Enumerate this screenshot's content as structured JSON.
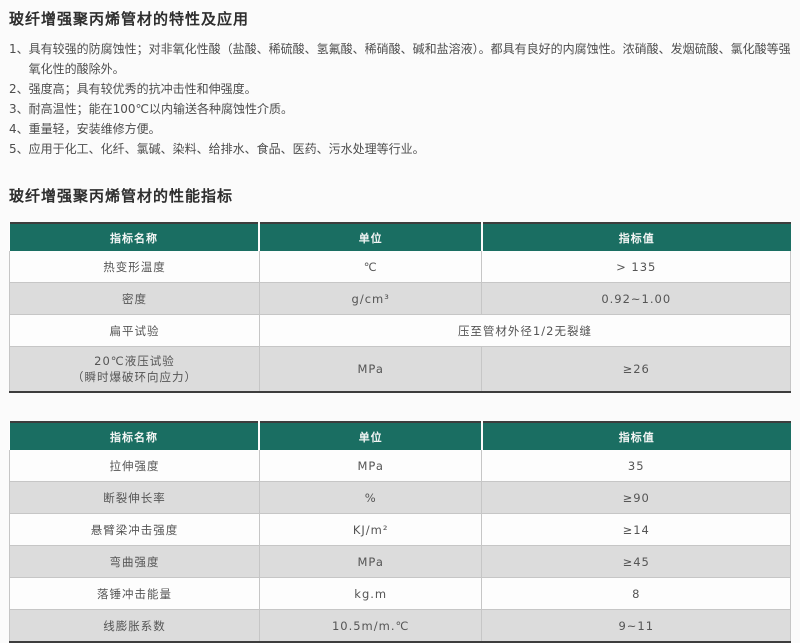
{
  "colors": {
    "header_bg": "#1a6e62",
    "alt_row_bg": "#dcdcdc",
    "table_border_dark": "#3d3d3d"
  },
  "section1": {
    "title": "玻纤增强聚丙烯管材的特性及应用"
  },
  "features": [
    {
      "num": "1、",
      "text": "具有较强的防腐蚀性；对非氧化性酸（盐酸、稀硫酸、氢氟酸、稀硝酸、碱和盐溶液）。都具有良好的内腐蚀性。浓硝酸、发烟硫酸、氯化酸等强氧化性的酸除外。"
    },
    {
      "num": "2、",
      "text": "强度高；具有较优秀的抗冲击性和伸强度。"
    },
    {
      "num": "3、",
      "text": "耐高温性；能在100℃以内输送各种腐蚀性介质。"
    },
    {
      "num": "4、",
      "text": "重量轻，安装维修方便。"
    },
    {
      "num": "5、",
      "text": "应用于化工、化纤、氯碱、染料、给排水、食品、医药、污水处理等行业。"
    }
  ],
  "section2": {
    "title": "玻纤增强聚丙烯管材的性能指标"
  },
  "table1": {
    "headers": [
      "指标名称",
      "单位",
      "指标值"
    ],
    "rows": [
      {
        "name": "热变形温度",
        "unit": "℃",
        "value": "> 135"
      },
      {
        "name": "密度",
        "unit": "g/cm³",
        "value": "0.92~1.00"
      },
      {
        "name": "扁平试验",
        "merged": "压至管材外径1/2无裂缝"
      },
      {
        "name_line1": "20℃液压试验",
        "name_line2": "（瞬时爆破环向应力）",
        "unit": "MPa",
        "value": "≥26"
      }
    ]
  },
  "table2": {
    "headers": [
      "指标名称",
      "单位",
      "指标值"
    ],
    "rows": [
      {
        "name": "拉伸强度",
        "unit": "MPa",
        "value": "35"
      },
      {
        "name": "断裂伸长率",
        "unit": "%",
        "value": "≥90"
      },
      {
        "name": "悬臂梁冲击强度",
        "unit": "KJ/m²",
        "value": "≥14"
      },
      {
        "name": "弯曲强度",
        "unit": "MPa",
        "value": "≥45"
      },
      {
        "name": "落锤冲击能量",
        "unit": "kg.m",
        "value": "8"
      },
      {
        "name": "线膨胀系数",
        "unit": "10.5m/m.℃",
        "value": "9~11"
      }
    ]
  }
}
